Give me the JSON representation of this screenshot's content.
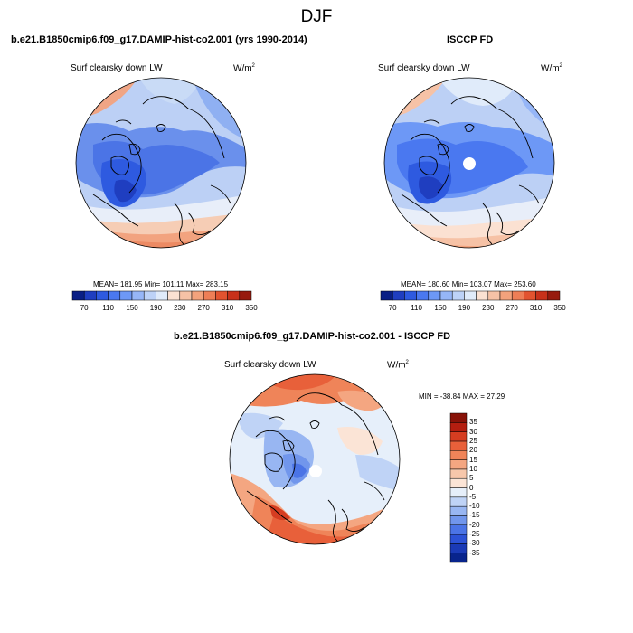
{
  "figure": {
    "season": "DJF"
  },
  "panels": [
    {
      "title": "b.e21.B1850cmip6.f09_g17.DAMIP-hist-co2.001 (yrs 1990-2014)",
      "variable": "Surf clearsky down LW",
      "units_base": "W/m",
      "units_exp": "2",
      "stats": "MEAN= 181.95  Min= 101.11  Max= 283.15"
    },
    {
      "title": "ISCCP FD",
      "variable": "Surf clearsky down LW",
      "units_base": "W/m",
      "units_exp": "2",
      "stats": "MEAN= 180.60  Min= 103.07  Max= 253.60"
    },
    {
      "title": "b.e21.B1850cmip6.f09_g17.DAMIP-hist-co2.001 - ISCCP FD",
      "variable": "Surf clearsky down LW",
      "units_base": "W/m",
      "units_exp": "2",
      "stats": "MIN = -38.84 MAX =  27.29"
    }
  ],
  "colorbars": {
    "abs": {
      "colors": [
        "#0a1f85",
        "#1f3ec0",
        "#2e5ae0",
        "#4a78f0",
        "#6d98f6",
        "#96b6f7",
        "#bdd2f7",
        "#e0ebfa",
        "#fbe1d2",
        "#f6c2a6",
        "#f3a27c",
        "#ee7e56",
        "#e2532f",
        "#c8311a",
        "#971a0e"
      ],
      "tick_labels": [
        "70",
        "110",
        "150",
        "190",
        "230",
        "270",
        "310",
        "350"
      ]
    },
    "diff": {
      "colors": [
        "#08248c",
        "#1a3ab6",
        "#2c52d6",
        "#4b74e6",
        "#7196ec",
        "#98b6f2",
        "#bfd3f6",
        "#e6effa",
        "#fbe4d6",
        "#f7c7ab",
        "#f4a681",
        "#ef8459",
        "#e8603a",
        "#d63d21",
        "#b41e10",
        "#881208"
      ],
      "tick_labels": [
        "35",
        "30",
        "25",
        "20",
        "15",
        "10",
        "5",
        "0",
        "-5",
        "-10",
        "-15",
        "-20",
        "-25",
        "-30",
        "-35"
      ]
    }
  }
}
